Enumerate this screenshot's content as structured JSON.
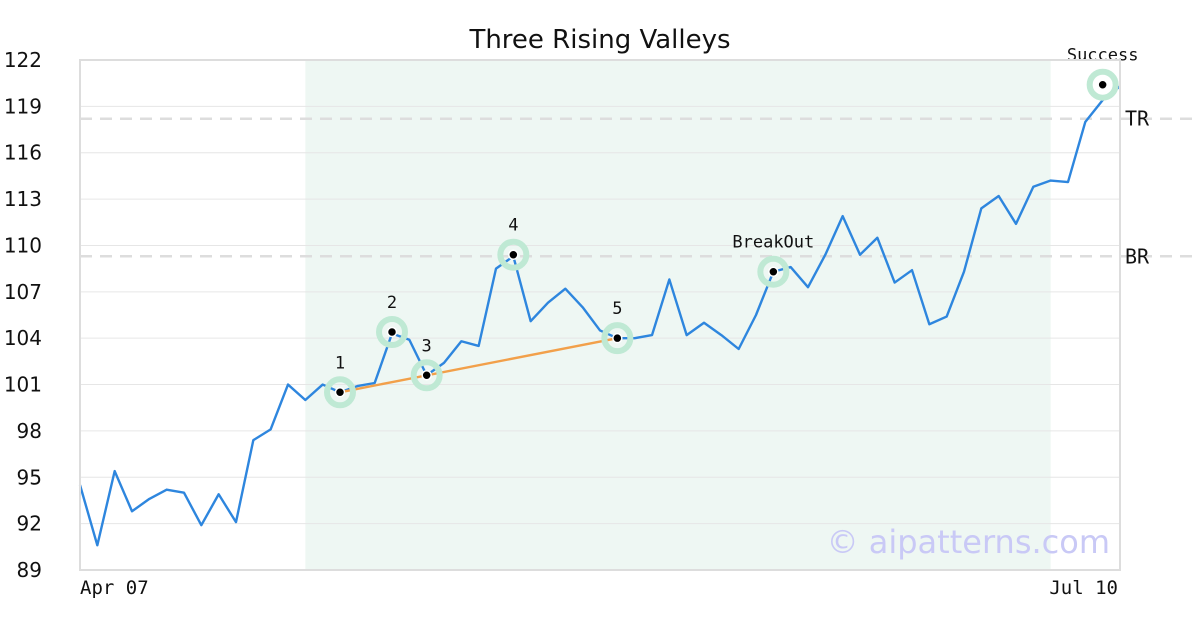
{
  "chart_data": {
    "type": "line",
    "title": "Three Rising Valleys",
    "xlabel": "",
    "ylabel": "",
    "x_tick_labels": [
      "Apr 07",
      "Jul 10"
    ],
    "x_count": 61,
    "ylim": [
      89,
      122
    ],
    "yticks": [
      89,
      92,
      95,
      98,
      101,
      104,
      107,
      110,
      113,
      116,
      119,
      122
    ],
    "grid": true,
    "pattern_range": [
      13,
      56
    ],
    "series": [
      {
        "name": "",
        "color": "#2e86de",
        "values": [
          94.5,
          90.6,
          95.4,
          92.8,
          93.6,
          94.2,
          94.0,
          91.9,
          93.9,
          92.1,
          97.4,
          98.1,
          101.0,
          100.0,
          101.0,
          100.5,
          100.9,
          101.1,
          104.3,
          103.9,
          101.6,
          102.4,
          103.8,
          103.5,
          108.5,
          109.3,
          105.1,
          106.3,
          107.2,
          106.0,
          104.5,
          104.0,
          104.0,
          104.2,
          107.8,
          104.2,
          105.0,
          104.2,
          103.3,
          105.5,
          108.3,
          108.6,
          107.3,
          109.4,
          111.9,
          109.4,
          110.5,
          107.6,
          108.4,
          104.9,
          105.4,
          108.3,
          112.4,
          113.2,
          111.4,
          113.8,
          114.2,
          114.1,
          118.0,
          119.4,
          120.3
        ]
      }
    ],
    "points": [
      {
        "label": "1",
        "x": 15,
        "y": 100.5
      },
      {
        "label": "2",
        "x": 18,
        "y": 104.4
      },
      {
        "label": "3",
        "x": 20,
        "y": 101.6
      },
      {
        "label": "4",
        "x": 25,
        "y": 109.4
      },
      {
        "label": "5",
        "x": 31,
        "y": 104.0
      },
      {
        "label": "BreakOut",
        "x": 40,
        "y": 108.3
      },
      {
        "label": "Success",
        "x": 59,
        "y": 120.4
      }
    ],
    "trendline": {
      "from": 0,
      "to": 4,
      "color": "#f2a04a"
    },
    "reference_lines": [
      {
        "label": "TR",
        "y": 118.2
      },
      {
        "label": "BR",
        "y": 109.3
      }
    ]
  },
  "watermark": "© aipatterns.com",
  "colors": {
    "line": "#2e86de",
    "trend": "#f2a04a",
    "pattern_bg": "#eef7f3",
    "point_halo": "#bfe9d4",
    "grid": "#e6e6e6",
    "ref_line": "#dddddd"
  }
}
